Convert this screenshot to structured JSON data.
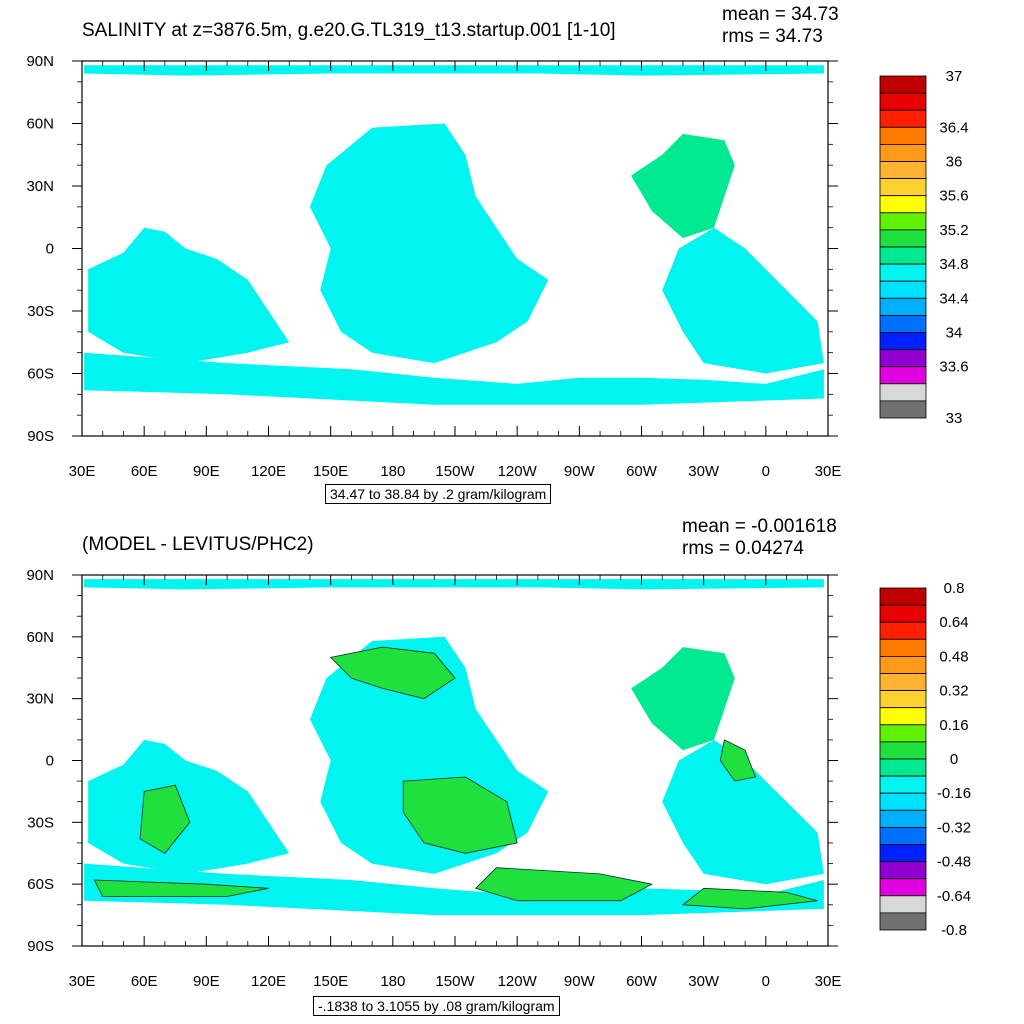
{
  "panels": [
    {
      "id": "top",
      "title": "SALINITY at z=3876.5m, g.e20.G.TL319_t13.startup.001 [1-10]",
      "mean_label": "mean = 34.73",
      "rms_label": "rms = 34.73",
      "caption": "34.47 to 38.84 by .2 gram/kilogram",
      "ocean_color": "#00f5f0",
      "features": [
        "salinity-field"
      ]
    },
    {
      "id": "bottom",
      "title": "(MODEL - LEVITUS/PHC2)",
      "mean_label": "mean = -0.001618",
      "rms_label": "rms = 0.04274",
      "caption": "-.1838 to 3.1055 by .08 gram/kilogram",
      "ocean_color": "#00f5f0",
      "features": [
        "difference-field"
      ]
    }
  ],
  "chart_data": [
    {
      "type": "heatmap",
      "title": "SALINITY at z=3876.5m, g.e20.G.TL319_t13.startup.001 [1-10]",
      "projection": "cylindrical equidistant",
      "x_ticks": [
        "30E",
        "60E",
        "90E",
        "120E",
        "150E",
        "180",
        "150W",
        "120W",
        "90W",
        "60W",
        "30W",
        "0",
        "30E"
      ],
      "y_ticks": [
        "90N",
        "60N",
        "30N",
        "0",
        "30S",
        "60S",
        "90S"
      ],
      "xlim": [
        30,
        390
      ],
      "ylim": [
        -90,
        90
      ],
      "colorbar": {
        "labels": [
          "37",
          "36.4",
          "36",
          "35.6",
          "35.2",
          "34.8",
          "34.4",
          "34",
          "33.6",
          "33"
        ],
        "colors": [
          "#c00000",
          "#e60000",
          "#ff2000",
          "#ff7b00",
          "#ff9a1a",
          "#ffb330",
          "#ffd130",
          "#ffff00",
          "#60f000",
          "#20e040",
          "#00e890",
          "#00f5f0",
          "#00e0ff",
          "#00b0ff",
          "#0070ff",
          "#0020ff",
          "#9000d0",
          "#e000e0",
          "#d8d8d8",
          "#707070"
        ]
      },
      "mean": 34.73,
      "rms": 34.73
    },
    {
      "type": "heatmap",
      "title": "(MODEL - LEVITUS/PHC2)",
      "projection": "cylindrical equidistant",
      "x_ticks": [
        "30E",
        "60E",
        "90E",
        "120E",
        "150E",
        "180",
        "150W",
        "120W",
        "90W",
        "60W",
        "30W",
        "0",
        "30E"
      ],
      "y_ticks": [
        "90N",
        "60N",
        "30N",
        "0",
        "30S",
        "60S",
        "90S"
      ],
      "xlim": [
        30,
        390
      ],
      "ylim": [
        -90,
        90
      ],
      "colorbar": {
        "labels": [
          "0.8",
          "0.64",
          "0.48",
          "0.32",
          "0.16",
          "0",
          "-0.16",
          "-0.32",
          "-0.48",
          "-0.64",
          "-0.8"
        ],
        "colors": [
          "#c00000",
          "#e60000",
          "#ff2000",
          "#ff7b00",
          "#ff9a1a",
          "#ffb330",
          "#ffd130",
          "#ffff00",
          "#60f000",
          "#20e040",
          "#00e890",
          "#00f5f0",
          "#00e0ff",
          "#00b0ff",
          "#0070ff",
          "#0020ff",
          "#9000d0",
          "#e000e0",
          "#d8d8d8",
          "#707070"
        ]
      },
      "mean": -0.001618,
      "rms": 0.04274
    }
  ]
}
